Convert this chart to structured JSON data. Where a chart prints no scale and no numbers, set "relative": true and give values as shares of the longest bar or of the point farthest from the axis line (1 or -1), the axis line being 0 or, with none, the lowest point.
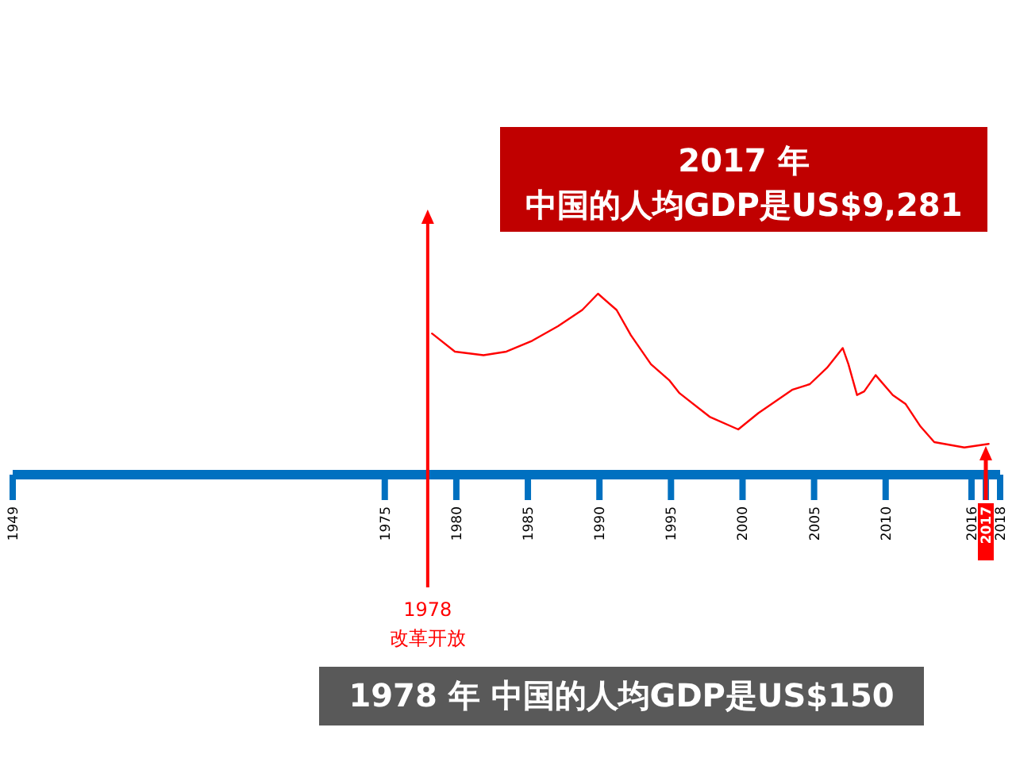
{
  "chart_data": {
    "type": "line",
    "relative": true,
    "xlim": [
      1949,
      2018
    ],
    "xticks": [
      1949,
      1975,
      1980,
      1985,
      1990,
      1995,
      2000,
      2005,
      2010,
      2016,
      2017,
      2018
    ],
    "series": [
      {
        "color": "#ff0000",
        "x": [
          1978.3,
          1979.9,
          1981.9,
          1983.5,
          1985.3,
          1987.1,
          1988.8,
          1989.9,
          1991.2,
          1992.2,
          1993.6,
          1994.9,
          1995.6,
          1997.7,
          1999.7,
          2001.1,
          2003.5,
          2004.7,
          2005.9,
          2007.0,
          2007.4,
          2008.0,
          2008.5,
          2009.3,
          2010.5,
          2011.4,
          2012.4,
          2013.4,
          2015.5,
          2017.2
        ],
        "values": [
          0.78,
          0.68,
          0.66,
          0.68,
          0.74,
          0.82,
          0.91,
          1,
          0.91,
          0.77,
          0.61,
          0.52,
          0.45,
          0.32,
          0.25,
          0.34,
          0.47,
          0.5,
          0.59,
          0.7,
          0.61,
          0.44,
          0.46,
          0.55,
          0.44,
          0.39,
          0.27,
          0.18,
          0.15,
          0.17
        ]
      }
    ],
    "ref_lines": [
      {
        "axis": "x",
        "value": 1978,
        "label": "1978\n改革开放",
        "color": "#ff0000"
      },
      {
        "axis": "x",
        "value": 2017,
        "label": null,
        "color": "#ff0000"
      }
    ],
    "annotations": [
      "2017 年",
      "中国的人均GDP是US$9,281",
      "1978 年  中国的人均GDP是US$150"
    ]
  }
}
